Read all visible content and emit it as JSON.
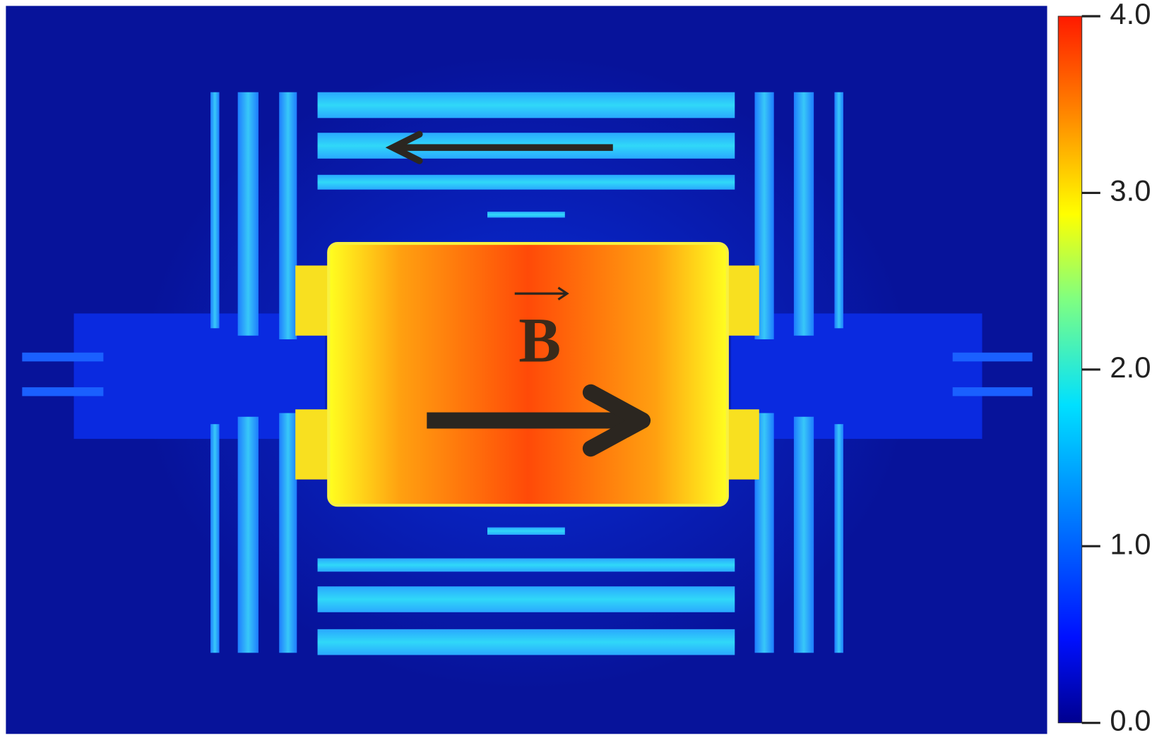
{
  "annotation": {
    "label": "B"
  },
  "colorbar": {
    "lim": [
      0,
      4
    ],
    "ticks": [
      {
        "value": 0,
        "label": "0.0"
      },
      {
        "value": 1,
        "label": "1.0"
      },
      {
        "value": 2,
        "label": "2.0"
      },
      {
        "value": 3,
        "label": "3.0"
      },
      {
        "value": 4,
        "label": "4.0"
      }
    ]
  }
}
